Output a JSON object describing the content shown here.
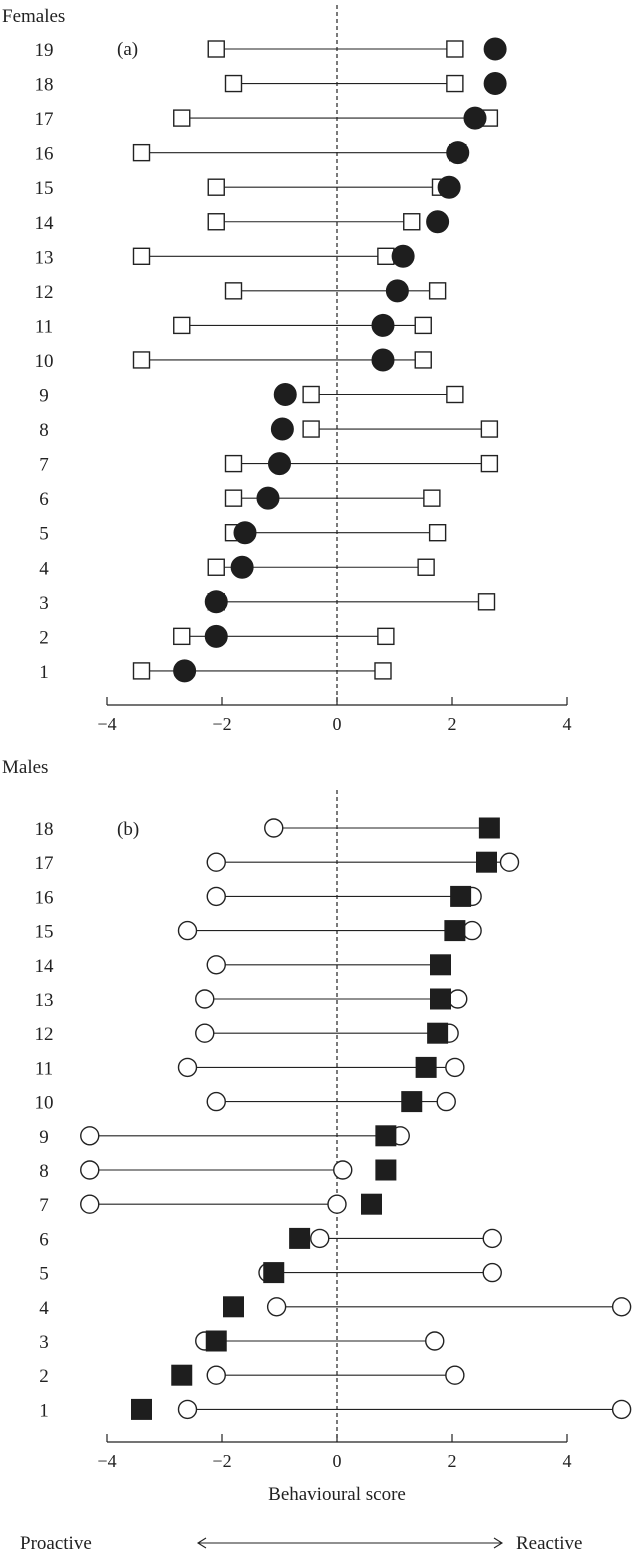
{
  "chart_data": [
    {
      "type": "scatter",
      "panel_title": "Females",
      "panel_label": "(a)",
      "xlabel": "",
      "xlim": [
        -4,
        5
      ],
      "xticks": [
        -4,
        -2,
        0,
        2,
        4
      ],
      "colors": {
        "range_markers": "#ffffff",
        "individual_marker": "#1e1e1e"
      },
      "markers": {
        "range": "open-square",
        "individual": "filled-circle"
      },
      "individuals": [
        {
          "id": "1",
          "low": -3.4,
          "high": 0.8,
          "score": -2.65
        },
        {
          "id": "2",
          "low": -2.7,
          "high": 0.85,
          "score": -2.1
        },
        {
          "id": "3",
          "low": -2.1,
          "high": 2.6,
          "score": -2.1
        },
        {
          "id": "4",
          "low": -2.1,
          "high": 1.55,
          "score": -1.65
        },
        {
          "id": "5",
          "low": -1.8,
          "high": 1.75,
          "score": -1.6
        },
        {
          "id": "6",
          "low": -1.8,
          "high": 1.65,
          "score": -1.2
        },
        {
          "id": "7",
          "low": -1.8,
          "high": 2.65,
          "score": -1.0
        },
        {
          "id": "8",
          "low": -0.45,
          "high": 2.65,
          "score": -0.95
        },
        {
          "id": "9",
          "low": -0.45,
          "high": 2.05,
          "score": -0.9
        },
        {
          "id": "10",
          "low": -3.4,
          "high": 1.5,
          "score": 0.8
        },
        {
          "id": "11",
          "low": -2.7,
          "high": 1.5,
          "score": 0.8
        },
        {
          "id": "12",
          "low": -1.8,
          "high": 1.75,
          "score": 1.05
        },
        {
          "id": "13",
          "low": -3.4,
          "high": 0.85,
          "score": 1.15
        },
        {
          "id": "14",
          "low": -2.1,
          "high": 1.3,
          "score": 1.75
        },
        {
          "id": "15",
          "low": -2.1,
          "high": 1.8,
          "score": 1.95
        },
        {
          "id": "16",
          "low": -3.4,
          "high": 2.1,
          "score": 2.1
        },
        {
          "id": "17",
          "low": -2.7,
          "high": 2.65,
          "score": 2.4
        },
        {
          "id": "18",
          "low": -1.8,
          "high": 2.05,
          "score": 2.75
        },
        {
          "id": "19",
          "low": -2.1,
          "high": 2.05,
          "score": 2.75
        }
      ]
    },
    {
      "type": "scatter",
      "panel_title": "Males",
      "panel_label": "(b)",
      "xlabel": "Behavioural score",
      "xlim": [
        -4,
        5
      ],
      "xticks": [
        -4,
        -2,
        0,
        2,
        4
      ],
      "colors": {
        "range_markers": "#ffffff",
        "individual_marker": "#1e1e1e"
      },
      "markers": {
        "range": "open-circle",
        "individual": "filled-square"
      },
      "individuals": [
        {
          "id": "1",
          "low": -2.6,
          "high": 4.95,
          "score": -3.4
        },
        {
          "id": "2",
          "low": -2.1,
          "high": 2.05,
          "score": -2.7
        },
        {
          "id": "3",
          "low": -2.3,
          "high": 1.7,
          "score": -2.1
        },
        {
          "id": "4",
          "low": -1.05,
          "high": 4.95,
          "score": -1.8
        },
        {
          "id": "5",
          "low": -1.2,
          "high": 2.7,
          "score": -1.1
        },
        {
          "id": "6",
          "low": -0.3,
          "high": 2.7,
          "score": -0.65
        },
        {
          "id": "7",
          "low": -4.3,
          "high": 0.0,
          "score": 0.6
        },
        {
          "id": "8",
          "low": -4.3,
          "high": 0.1,
          "score": 0.85
        },
        {
          "id": "9",
          "low": -4.3,
          "high": 1.1,
          "score": 0.85
        },
        {
          "id": "10",
          "low": -2.1,
          "high": 1.9,
          "score": 1.3
        },
        {
          "id": "11",
          "low": -2.6,
          "high": 2.05,
          "score": 1.55
        },
        {
          "id": "12",
          "low": -2.3,
          "high": 1.95,
          "score": 1.75
        },
        {
          "id": "13",
          "low": -2.3,
          "high": 2.1,
          "score": 1.8
        },
        {
          "id": "14",
          "low": -2.1,
          "high": 1.8,
          "score": 1.8
        },
        {
          "id": "15",
          "low": -2.6,
          "high": 2.35,
          "score": 2.05
        },
        {
          "id": "16",
          "low": -2.1,
          "high": 2.35,
          "score": 2.15
        },
        {
          "id": "17",
          "low": -2.1,
          "high": 3.0,
          "score": 2.6
        },
        {
          "id": "18",
          "low": -1.1,
          "high": 2.65,
          "score": 2.65
        }
      ]
    }
  ],
  "footer": {
    "left_label": "Proactive",
    "right_label": "Reactive",
    "arrow": "double-headed-arrow"
  }
}
